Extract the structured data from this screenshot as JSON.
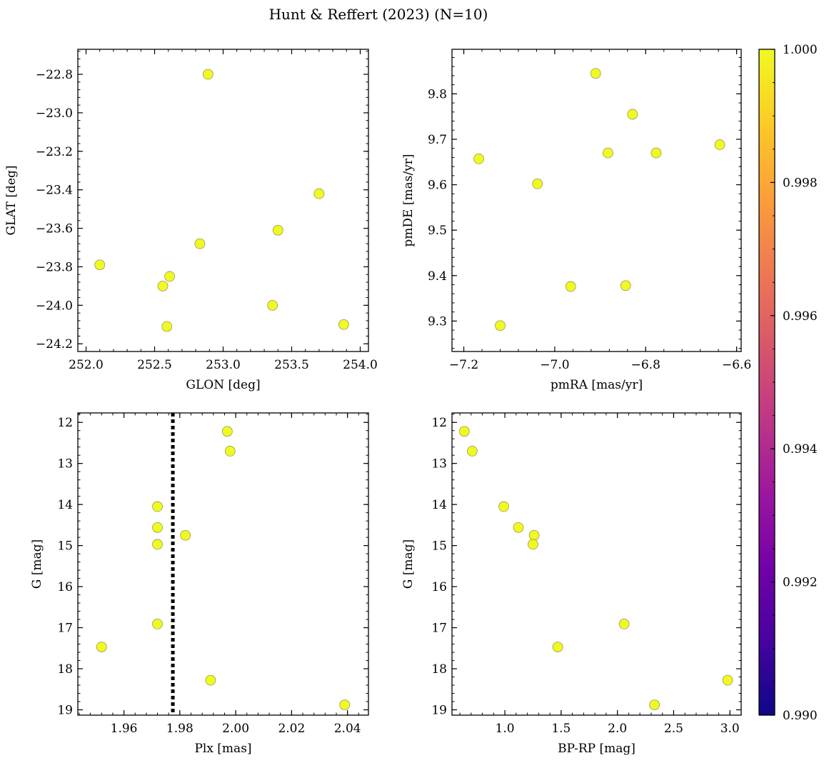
{
  "figure": {
    "title": "Hunt & Reffert (2023) (N=10)",
    "point_color": "#f0f921",
    "point_edge_color": "#9a9a5a"
  },
  "chart_data": [
    {
      "type": "scatter",
      "xlabel": "GLON [deg]",
      "ylabel": "GLAT [deg]",
      "xlim": [
        251.94,
        254.06
      ],
      "ylim": [
        -24.24,
        -22.67
      ],
      "xticks": [
        252.0,
        252.5,
        253.0,
        253.5,
        254.0
      ],
      "xtick_labels": [
        "252.0",
        "252.5",
        "253.0",
        "253.5",
        "254.0"
      ],
      "yticks": [
        -24.2,
        -24.0,
        -23.8,
        -23.6,
        -23.4,
        -23.2,
        -23.0,
        -22.8
      ],
      "ytick_labels": [
        "−24.2",
        "−24.0",
        "−23.8",
        "−23.6",
        "−23.4",
        "−23.2",
        "−23.0",
        "−22.8"
      ],
      "x": [
        252.1,
        252.89,
        253.7,
        253.4,
        252.83,
        252.61,
        252.56,
        253.36,
        252.59,
        253.88
      ],
      "y": [
        -23.79,
        -22.8,
        -23.42,
        -23.61,
        -23.68,
        -23.85,
        -23.9,
        -24.0,
        -24.11,
        -24.1
      ]
    },
    {
      "type": "scatter",
      "xlabel": "pmRA [mas/yr]",
      "ylabel": "pmDE [mas/yr]",
      "xlim": [
        -7.226,
        -6.59
      ],
      "ylim": [
        9.233,
        9.898
      ],
      "xticks": [
        -7.2,
        -7.0,
        -6.8,
        -6.6
      ],
      "xtick_labels": [
        "−7.2",
        "−7.0",
        "−6.8",
        "−6.6"
      ],
      "yticks": [
        9.3,
        9.4,
        9.5,
        9.6,
        9.7,
        9.8
      ],
      "ytick_labels": [
        "9.3",
        "9.4",
        "9.5",
        "9.6",
        "9.7",
        "9.8"
      ],
      "x": [
        -6.91,
        -6.829,
        -6.883,
        -6.777,
        -6.637,
        -7.167,
        -7.038,
        -6.965,
        -6.844,
        -7.12
      ],
      "y": [
        9.845,
        9.755,
        9.67,
        9.67,
        9.688,
        9.657,
        9.602,
        9.376,
        9.378,
        9.29
      ]
    },
    {
      "type": "scatter",
      "xlabel": "Plx [mas]",
      "ylabel": "G [mag]",
      "xlim": [
        1.9435,
        2.0475
      ],
      "ylim": [
        19.13,
        11.77
      ],
      "yinverted": true,
      "xticks": [
        1.96,
        1.98,
        2.0,
        2.02,
        2.04
      ],
      "xtick_labels": [
        "1.96",
        "1.98",
        "2.00",
        "2.02",
        "2.04"
      ],
      "yticks": [
        12,
        13,
        14,
        15,
        16,
        17,
        18,
        19
      ],
      "ytick_labels": [
        "12",
        "13",
        "14",
        "15",
        "16",
        "17",
        "18",
        "19"
      ],
      "vline": 1.9775,
      "x": [
        1.997,
        1.998,
        1.972,
        1.972,
        1.982,
        1.972,
        1.972,
        1.952,
        1.991,
        2.039
      ],
      "y": [
        12.22,
        12.7,
        14.05,
        14.56,
        14.75,
        14.97,
        16.91,
        17.47,
        18.28,
        18.88
      ]
    },
    {
      "type": "scatter",
      "xlabel": "BP-RP [mag]",
      "ylabel": "G [mag]",
      "xlim": [
        0.53,
        3.1
      ],
      "ylim": [
        19.13,
        11.77
      ],
      "yinverted": true,
      "xticks": [
        1.0,
        1.5,
        2.0,
        2.5,
        3.0
      ],
      "xtick_labels": [
        "1.0",
        "1.5",
        "2.0",
        "2.5",
        "3.0"
      ],
      "yticks": [
        12,
        13,
        14,
        15,
        16,
        17,
        18,
        19
      ],
      "ytick_labels": [
        "12",
        "13",
        "14",
        "15",
        "16",
        "17",
        "18",
        "19"
      ],
      "x": [
        0.64,
        0.71,
        0.99,
        1.12,
        1.26,
        1.25,
        2.06,
        1.47,
        2.98,
        2.33
      ],
      "y": [
        12.22,
        12.7,
        14.05,
        14.56,
        14.75,
        14.97,
        16.91,
        17.47,
        18.28,
        18.88
      ]
    }
  ],
  "colorbar": {
    "range": [
      0.99,
      1.0
    ],
    "ticks": [
      0.99,
      0.992,
      0.994,
      0.996,
      0.998,
      1.0
    ],
    "tick_labels": [
      "0.990",
      "0.992",
      "0.994",
      "0.996",
      "0.998",
      "1.000"
    ],
    "colormap": [
      "#0d0887",
      "#46039f",
      "#7201a8",
      "#9c179e",
      "#bd3786",
      "#d8576b",
      "#ed7953",
      "#fb9f3a",
      "#fdca26",
      "#f0f921"
    ]
  }
}
